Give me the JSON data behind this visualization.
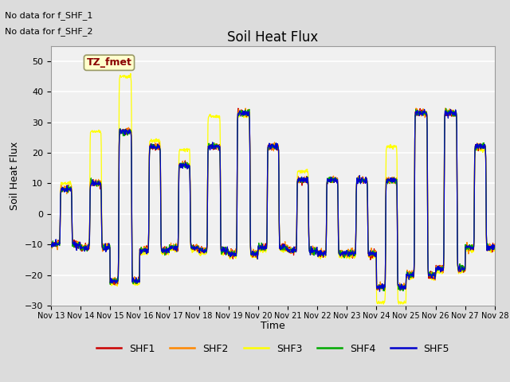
{
  "title": "Soil Heat Flux",
  "ylabel": "Soil Heat Flux",
  "xlabel": "Time",
  "ylim": [
    -30,
    55
  ],
  "yticks": [
    -30,
    -20,
    -10,
    0,
    10,
    20,
    30,
    40,
    50
  ],
  "plot_bg_color": "#dcdcdc",
  "fig_bg_color": "#dcdcdc",
  "no_data_text1": "No data for f_SHF_1",
  "no_data_text2": "No data for f_SHF_2",
  "legend_label": "TZ_fmet",
  "legend_bg": "#ffffcc",
  "legend_border": "#8b0000",
  "series_colors": {
    "SHF1": "#cc0000",
    "SHF2": "#ff8800",
    "SHF3": "#ffff00",
    "SHF4": "#00aa00",
    "SHF5": "#0000cc"
  },
  "xtick_labels": [
    "Nov 13",
    "Nov 14",
    "Nov 15",
    "Nov 16",
    "Nov 17",
    "Nov 18",
    "Nov 19",
    "Nov 20",
    "Nov 21",
    "Nov 22",
    "Nov 23",
    "Nov 24",
    "Nov 25",
    "Nov 26",
    "Nov 27",
    "Nov 28"
  ],
  "n_points": 1440
}
